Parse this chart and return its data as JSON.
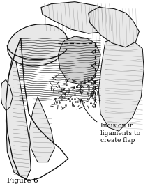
{
  "annotation_text": "Incision in\nligaments to\ncreate flap",
  "caption_text": "Figure 6",
  "bg_color": "#ffffff",
  "text_color": "#000000",
  "annotation_fontsize": 6.5,
  "caption_fontsize": 7.5,
  "fig_width": 2.15,
  "fig_height": 2.67,
  "dpi": 100
}
